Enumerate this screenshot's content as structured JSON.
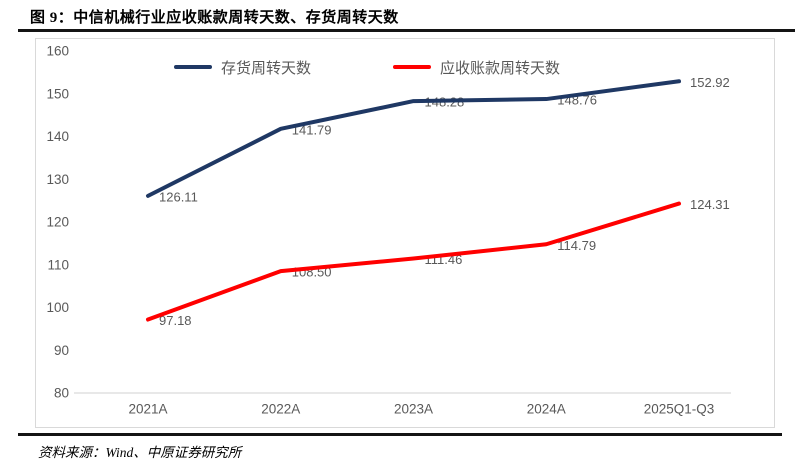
{
  "header": {
    "title": "图 9：中信机械行业应收账款周转天数、存货周转天数"
  },
  "footer": {
    "source": "资料来源：Wind、中原证券研究所"
  },
  "chart_data": {
    "type": "line",
    "title": "中信机械行业应收账款周转天数、存货周转天数",
    "xlabel": "",
    "ylabel": "",
    "categories": [
      "2021A",
      "2022A",
      "2023A",
      "2024A",
      "2025Q1-Q3"
    ],
    "series": [
      {
        "name": "存货周转天数",
        "color": "#1f3864",
        "values": [
          126.11,
          141.79,
          148.28,
          148.76,
          152.92
        ]
      },
      {
        "name": "应收账款周转天数",
        "color": "#ff0000",
        "values": [
          97.18,
          108.5,
          111.46,
          114.79,
          124.31
        ]
      }
    ],
    "ylim": [
      80,
      160
    ],
    "ytick_step": 10,
    "grid": "baseline-only",
    "legend_position": "top",
    "data_labels": true,
    "colors": {
      "axis_text": "#595959",
      "data_label_text": "#595959",
      "gridline": "#d9d9d9",
      "panel_border": "#d9d9d9",
      "rule": "#141414"
    }
  }
}
